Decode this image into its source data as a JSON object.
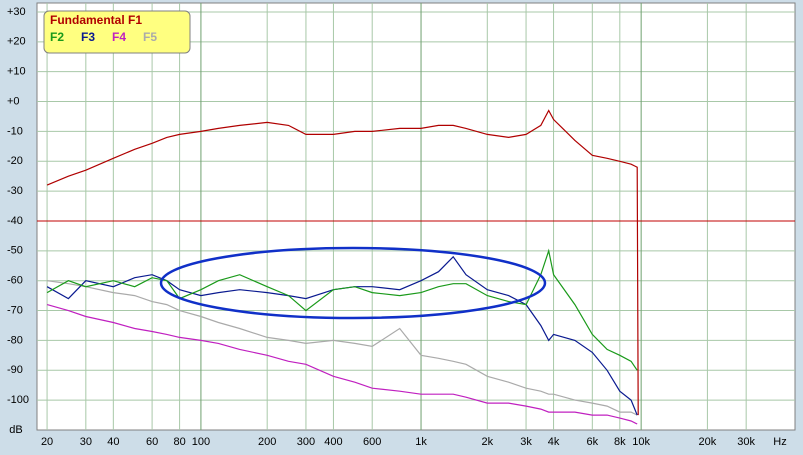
{
  "chart_data": {
    "type": "line",
    "x_label": "Hz",
    "y_label": "dB",
    "log_x": true,
    "grid": true,
    "xlim": [
      18,
      50000
    ],
    "ylim": [
      -110,
      33
    ],
    "xticks": [
      20,
      30,
      40,
      60,
      80,
      100,
      200,
      300,
      400,
      600,
      {
        "value": 1000,
        "label": "1k"
      },
      {
        "value": 2000,
        "label": "2k"
      },
      {
        "value": 3000,
        "label": "3k"
      },
      {
        "value": 4000,
        "label": "4k"
      },
      {
        "value": 6000,
        "label": "6k"
      },
      {
        "value": 8000,
        "label": "8k"
      },
      {
        "value": 10000,
        "label": "10k"
      },
      {
        "value": 20000,
        "label": "20k"
      },
      {
        "value": 30000,
        "label": "30k"
      }
    ],
    "yticks": [
      {
        "value": 30,
        "label": "+30"
      },
      {
        "value": 20,
        "label": "+20"
      },
      {
        "value": 10,
        "label": "+10"
      },
      {
        "value": 0,
        "label": "+0"
      },
      -10,
      -20,
      -30,
      -40,
      -50,
      -60,
      -70,
      -80,
      -90,
      -100
    ],
    "hline": {
      "value": -40,
      "color": "#c00000"
    },
    "legend": "top-left",
    "x": [
      20,
      25,
      30,
      40,
      50,
      60,
      70,
      80,
      100,
      120,
      150,
      200,
      250,
      300,
      400,
      500,
      600,
      800,
      1000,
      1200,
      1400,
      1600,
      2000,
      2500,
      3000,
      3500,
      3800,
      4000,
      5000,
      6000,
      7000,
      8000,
      9000,
      9600,
      9700
    ],
    "series": [
      {
        "name": "Fundamental F1",
        "color": "#b00000",
        "values": [
          -28,
          -25,
          -23,
          -19,
          -16,
          -14,
          -12,
          -11,
          -10,
          -9,
          -8,
          -7,
          -8,
          -11,
          -11,
          -10,
          -10,
          -9,
          -9,
          -8,
          -8,
          -9,
          -11,
          -12,
          -11,
          -8,
          -3,
          -6,
          -13,
          -18,
          -19,
          -20,
          -21,
          -22,
          -105
        ]
      },
      {
        "name": "F2",
        "color": "#1a9a1a",
        "values": [
          -64,
          -60,
          -62,
          -60,
          -62,
          -59,
          -60,
          -66,
          -63,
          -60,
          -58,
          -62,
          -65,
          -70,
          -63,
          -62,
          -64,
          -65,
          -64,
          -62,
          -61,
          -61,
          -65,
          -67,
          -68,
          -58,
          -50,
          -58,
          -68,
          -78,
          -83,
          -85,
          -87,
          -90,
          null
        ]
      },
      {
        "name": "F3",
        "color": "#0a1a90",
        "values": [
          -62,
          -66,
          -60,
          -62,
          -59,
          -58,
          -60,
          -63,
          -65,
          -64,
          -63,
          -64,
          -65,
          -66,
          -63,
          -62,
          -62,
          -63,
          -60,
          -57,
          -52,
          -58,
          -63,
          -65,
          -68,
          -75,
          -80,
          -78,
          -80,
          -84,
          -90,
          -97,
          -100,
          -105,
          null
        ]
      },
      {
        "name": "F4",
        "color": "#c020c0",
        "values": [
          -68,
          -70,
          -72,
          -74,
          -76,
          -77,
          -78,
          -79,
          -80,
          -81,
          -83,
          -85,
          -87,
          -88,
          -92,
          -94,
          -96,
          -97,
          -98,
          -98,
          -98,
          -99,
          -101,
          -101,
          -102,
          -103,
          -104,
          -104,
          -104,
          -105,
          -105,
          -106,
          -107,
          -108,
          null
        ]
      },
      {
        "name": "F5",
        "color": "#aaaaaa",
        "values": [
          -60,
          -61,
          -62,
          -64,
          -65,
          -67,
          -68,
          -70,
          -72,
          -74,
          -76,
          -79,
          -80,
          -81,
          -80,
          -81,
          -82,
          -76,
          -85,
          -86,
          -87,
          -88,
          -92,
          -94,
          -96,
          -97,
          -98,
          -98,
          -100,
          -101,
          -102,
          -104,
          -104,
          -105,
          null
        ]
      }
    ]
  }
}
